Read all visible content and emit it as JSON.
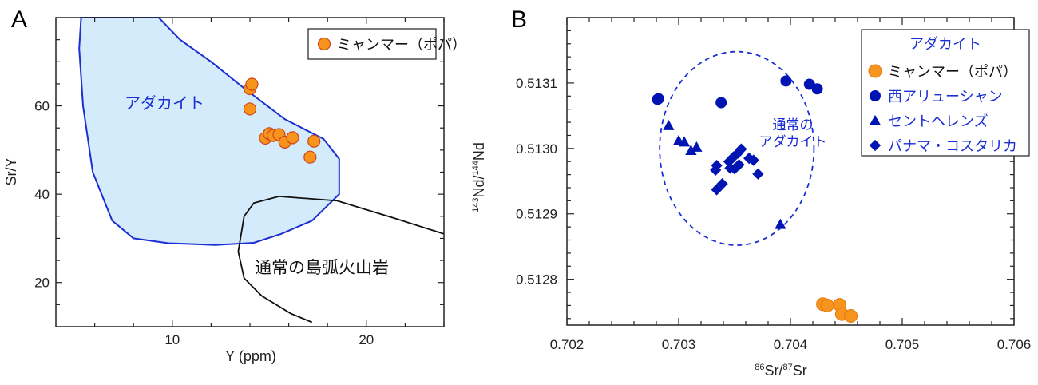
{
  "chart_data": [
    {
      "panel": "A",
      "type": "scatter",
      "xlabel": "Y (ppm)",
      "ylabel": "Sr/Y",
      "xlim": [
        4,
        24
      ],
      "ylim": [
        10,
        80
      ],
      "xticks": [
        10,
        20
      ],
      "yticks": [
        20,
        40,
        60
      ],
      "legend": [
        {
          "label": "ミャンマー（ポパ）",
          "color": "#f7941d",
          "marker": "circle"
        }
      ],
      "region_labels": {
        "adakite": "アダカイト",
        "normal_arc": "通常の島弧火山岩"
      },
      "adakite_field_boundary": [
        [
          5.3,
          80
        ],
        [
          9.3,
          80
        ],
        [
          10.4,
          75
        ],
        [
          12,
          70
        ],
        [
          13.7,
          64
        ],
        [
          15.8,
          57
        ],
        [
          17.8,
          52.5
        ],
        [
          18.6,
          48
        ],
        [
          18.6,
          40
        ],
        [
          17.2,
          34
        ],
        [
          15.6,
          31
        ],
        [
          14.2,
          29
        ],
        [
          12.2,
          28.5
        ],
        [
          9.8,
          28.9
        ],
        [
          8,
          30
        ],
        [
          6.9,
          34
        ],
        [
          5.9,
          45
        ],
        [
          5.4,
          60
        ],
        [
          5.2,
          73
        ],
        [
          5.3,
          80
        ]
      ],
      "normal_arc_boundary": [
        [
          24,
          31
        ],
        [
          21.5,
          34.5
        ],
        [
          18.5,
          38.5
        ],
        [
          15.5,
          39.5
        ],
        [
          14.2,
          38
        ],
        [
          13.7,
          35
        ],
        [
          13.4,
          27
        ],
        [
          13.7,
          21
        ],
        [
          14.6,
          17
        ],
        [
          16.1,
          13
        ],
        [
          17.2,
          11
        ]
      ],
      "series": [
        {
          "name": "ミャンマー（ポパ）",
          "color": "#f7941d",
          "points": [
            [
              14.0,
              63.9
            ],
            [
              14.1,
              64.9
            ],
            [
              14.0,
              59.3
            ],
            [
              14.8,
              52.7
            ],
            [
              15.0,
              53.7
            ],
            [
              15.2,
              53.3
            ],
            [
              15.5,
              53.5
            ],
            [
              15.8,
              51.8
            ],
            [
              16.2,
              52.8
            ],
            [
              17.3,
              52.0
            ],
            [
              17.1,
              48.4
            ]
          ]
        }
      ]
    },
    {
      "panel": "B",
      "type": "scatter",
      "xlabel": "86Sr/87Sr",
      "ylabel": "143Nd/144Nd",
      "xlim": [
        0.702,
        0.706
      ],
      "ylim": [
        0.51273,
        0.5132
      ],
      "xticks": [
        "0.702",
        "0.703",
        "0.704",
        "0.705",
        "0.706"
      ],
      "yticks": [
        "0.5128",
        "0.5129",
        "0.5130",
        "0.5131"
      ],
      "legend_title": "アダカイト",
      "annotation": [
        "通常の",
        "アダカイト"
      ],
      "ellipse": {
        "cx": 0.70352,
        "cy": 0.513,
        "rx": 0.00069,
        "ry": 0.000148
      },
      "series": [
        {
          "name": "ミャンマー（ポパ）",
          "marker": "circle",
          "color": "#f7941d",
          "points": [
            [
              0.70429,
              0.512762
            ],
            [
              0.70433,
              0.51276
            ],
            [
              0.70444,
              0.512761
            ],
            [
              0.70446,
              0.512747
            ],
            [
              0.70454,
              0.512744
            ]
          ]
        },
        {
          "name": "西アリューシャン",
          "marker": "circle",
          "color": "#0014b4",
          "points": [
            [
              0.70281,
              0.513075
            ],
            [
              0.70282,
              0.513076
            ],
            [
              0.70338,
              0.51307
            ],
            [
              0.70396,
              0.513103
            ],
            [
              0.70417,
              0.513098
            ],
            [
              0.70424,
              0.513091
            ]
          ]
        },
        {
          "name": "セントヘレンズ",
          "marker": "triangle",
          "color": "#0014b4",
          "points": [
            [
              0.70291,
              0.513035
            ],
            [
              0.703,
              0.513012
            ],
            [
              0.70305,
              0.51301
            ],
            [
              0.70311,
              0.512997
            ],
            [
              0.70316,
              0.513002
            ],
            [
              0.70391,
              0.512884
            ]
          ]
        },
        {
          "name": "パナマ・コスタリカ",
          "marker": "diamond",
          "color": "#0014b4",
          "points": [
            [
              0.70333,
              0.512967
            ],
            [
              0.70334,
              0.512974
            ],
            [
              0.70334,
              0.512937
            ],
            [
              0.70339,
              0.512946
            ],
            [
              0.70345,
              0.51298
            ],
            [
              0.70349,
              0.512987
            ],
            [
              0.70353,
              0.512993
            ],
            [
              0.70356,
              0.512999
            ],
            [
              0.7035,
              0.512969
            ],
            [
              0.70354,
              0.512975
            ],
            [
              0.70346,
              0.51297
            ],
            [
              0.70363,
              0.512985
            ],
            [
              0.70367,
              0.512982
            ],
            [
              0.70371,
              0.512961
            ]
          ]
        }
      ]
    }
  ]
}
